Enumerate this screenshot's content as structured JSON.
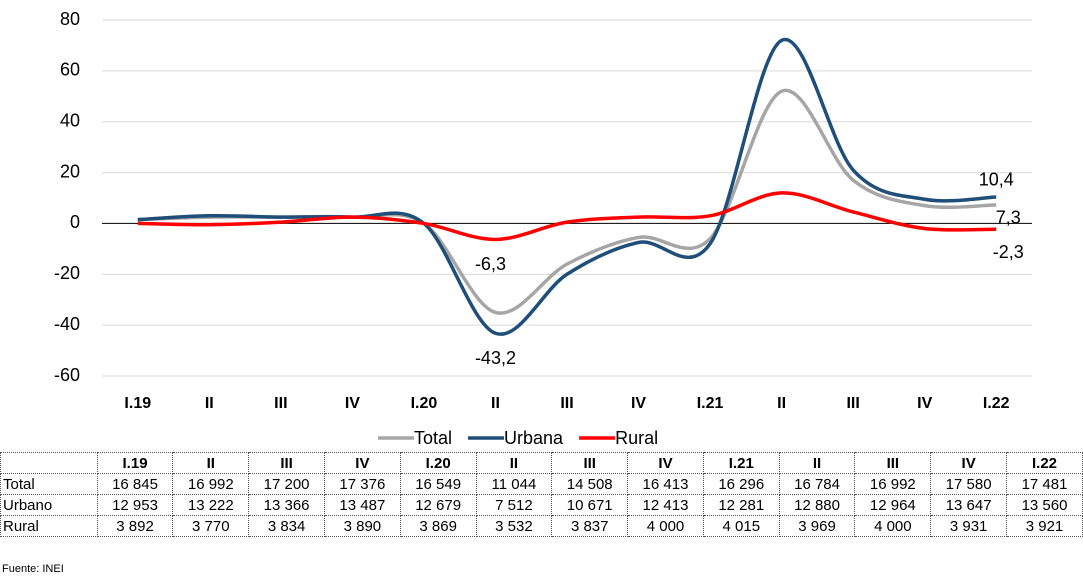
{
  "chart_data": {
    "type": "line",
    "categories": [
      "I.19",
      "II",
      "III",
      "IV",
      "I.20",
      "II",
      "III",
      "IV",
      "I.21",
      "II",
      "III",
      "IV",
      "I.22"
    ],
    "series": [
      {
        "name": "Total",
        "color": "#a6a6a6",
        "values": [
          1.5,
          2.5,
          2.5,
          2.5,
          0,
          -35,
          -16,
          -5.5,
          -6,
          52,
          17,
          7,
          7.3
        ],
        "value_labels": [
          null,
          null,
          null,
          null,
          null,
          null,
          null,
          null,
          null,
          null,
          null,
          null,
          "7,3"
        ]
      },
      {
        "name": "Urbana",
        "color": "#1f4e79",
        "values": [
          1.5,
          3,
          2.5,
          2.5,
          0,
          -43.2,
          -20,
          -7.5,
          -8,
          72,
          21,
          9.5,
          10.4
        ],
        "value_labels": [
          null,
          null,
          null,
          null,
          null,
          "-43,2",
          null,
          null,
          null,
          null,
          null,
          null,
          "10,4"
        ]
      },
      {
        "name": "Rural",
        "color": "#ff0000",
        "values": [
          0,
          -0.5,
          0.5,
          2.5,
          0,
          -6.3,
          0.5,
          2.5,
          3,
          12,
          4.5,
          -2,
          -2.3
        ],
        "value_labels": [
          null,
          null,
          null,
          null,
          null,
          "-6,3",
          null,
          null,
          null,
          null,
          null,
          null,
          "-2,3"
        ]
      }
    ],
    "ylim": [
      -60,
      80
    ],
    "yticks": [
      -60,
      -40,
      -20,
      0,
      20,
      40,
      60,
      80
    ],
    "grid": true
  },
  "table": {
    "header": [
      "I.19",
      "II",
      "III",
      "IV",
      "I.20",
      "II",
      "III",
      "IV",
      "I.21",
      "II",
      "III",
      "IV",
      "I.22"
    ],
    "rows": [
      [
        "Total",
        "16 845",
        "16 992",
        "17 200",
        "17 376",
        "16 549",
        "11 044",
        "14 508",
        "16 413",
        "16 296",
        "16 784",
        "16 992",
        "17 580",
        "17 481"
      ],
      [
        "Urbano",
        "12 953",
        "13 222",
        "13 366",
        "13 487",
        "12 679",
        "7 512",
        "10 671",
        "12 413",
        "12 281",
        "12 880",
        "12 964",
        "13 647",
        "13 560"
      ],
      [
        "Rural",
        "3 892",
        "3 770",
        "3 834",
        "3 890",
        "3 869",
        "3 532",
        "3 837",
        "4 000",
        "4 015",
        "3 969",
        "4 000",
        "3 931",
        "3 921"
      ]
    ]
  },
  "footer": "Fuente: INEI"
}
